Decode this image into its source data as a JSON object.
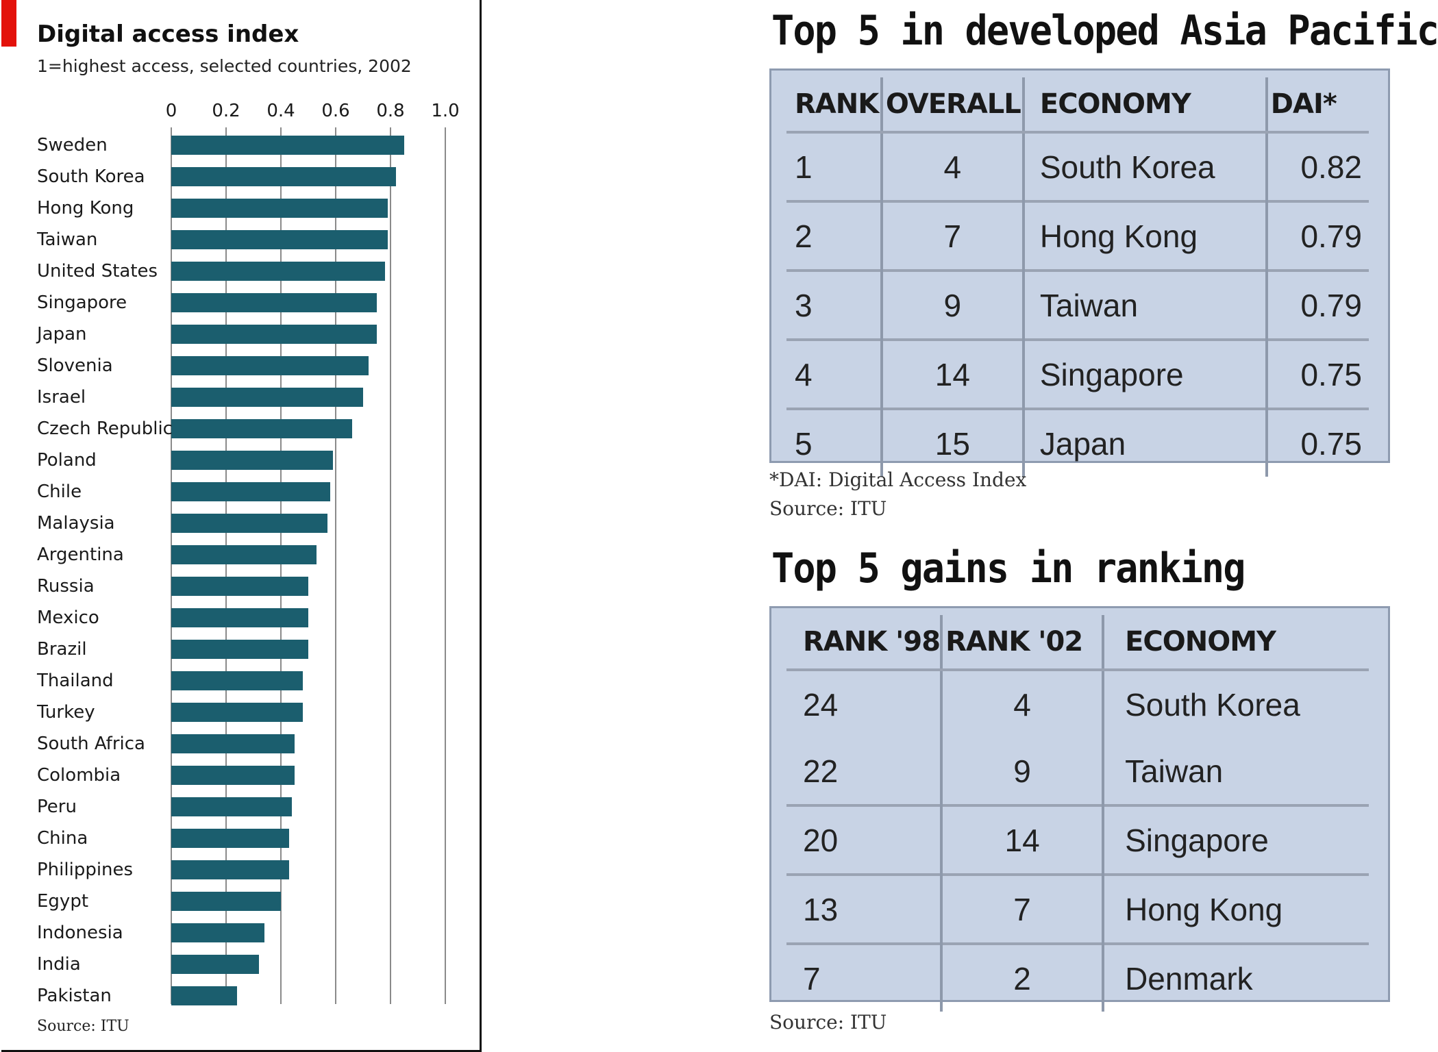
{
  "chart_data": [
    {
      "type": "bar",
      "orientation": "horizontal",
      "title": "Digital access index",
      "subtitle": "1=highest access, selected countries, 2002",
      "source": "Source: ITU",
      "xlim": [
        0,
        1.0
      ],
      "ticks": [
        "0",
        "0.2",
        "0.4",
        "0.6",
        "0.8",
        "1.0"
      ],
      "tick_values": [
        0,
        0.2,
        0.4,
        0.6,
        0.8,
        1.0
      ],
      "grid": true,
      "categories": [
        "Sweden",
        "South Korea",
        "Hong Kong",
        "Taiwan",
        "United States",
        "Singapore",
        "Japan",
        "Slovenia",
        "Israel",
        "Czech Republic",
        "Poland",
        "Chile",
        "Malaysia",
        "Argentina",
        "Russia",
        "Mexico",
        "Brazil",
        "Thailand",
        "Turkey",
        "South Africa",
        "Colombia",
        "Peru",
        "China",
        "Philippines",
        "Egypt",
        "Indonesia",
        "India",
        "Pakistan"
      ],
      "values": [
        0.85,
        0.82,
        0.79,
        0.79,
        0.78,
        0.75,
        0.75,
        0.72,
        0.7,
        0.66,
        0.59,
        0.58,
        0.57,
        0.53,
        0.5,
        0.5,
        0.5,
        0.48,
        0.48,
        0.45,
        0.45,
        0.44,
        0.43,
        0.43,
        0.4,
        0.34,
        0.32,
        0.24
      ],
      "bar_color": "#1b5e6e"
    },
    {
      "type": "table",
      "title": "Top 5 in developed Asia Pacific",
      "columns": [
        "RANK",
        "OVERALL",
        "ECONOMY",
        "DAI*"
      ],
      "rows": [
        [
          "1",
          "4",
          "South Korea",
          "0.82"
        ],
        [
          "2",
          "7",
          "Hong Kong",
          "0.79"
        ],
        [
          "3",
          "9",
          "Taiwan",
          "0.79"
        ],
        [
          "4",
          "14",
          "Singapore",
          "0.75"
        ],
        [
          "5",
          "15",
          "Japan",
          "0.75"
        ]
      ],
      "footnote": "*DAI: Digital Access Index",
      "source": "Source: ITU"
    },
    {
      "type": "table",
      "title": "Top 5 gains in ranking",
      "columns": [
        "RANK '98",
        "RANK '02",
        "ECONOMY"
      ],
      "rows": [
        [
          "24",
          "4",
          "South Korea"
        ],
        [
          "22",
          "9",
          "Taiwan"
        ],
        [
          "20",
          "14",
          "Singapore"
        ],
        [
          "13",
          "7",
          "Hong Kong"
        ],
        [
          "7",
          "2",
          "Denmark"
        ]
      ],
      "source": "Source: ITU"
    }
  ],
  "colors": {
    "accent_red": "#e3120b",
    "bar": "#1b5e6e",
    "table_fill": "#c8d3e5"
  }
}
